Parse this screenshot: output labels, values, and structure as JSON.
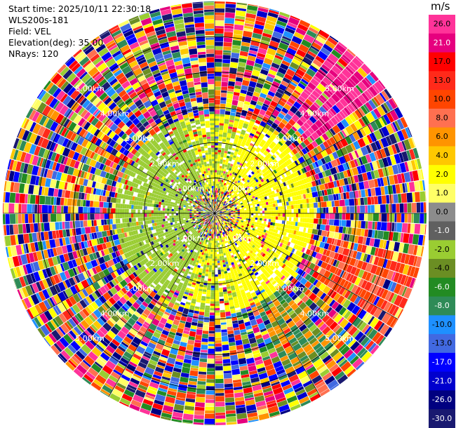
{
  "header": {
    "start_time": "Start time: 2025/10/11 22:30:18",
    "instrument": "WLS200s-181",
    "field": "Field: VEL",
    "elevation": "Elevation(deg): 35.00",
    "nrays": "NRays: 120"
  },
  "chart_data": {
    "type": "heatmap",
    "projection": "polar-ppi",
    "field": "VEL",
    "units": "m/s",
    "nrays": 120,
    "elevation_deg": 35.0,
    "range_rings_km": [
      1.0,
      2.0,
      3.0,
      4.0,
      5.0
    ],
    "range_ring_labels": [
      "1.00km",
      "2.00km",
      "3.00km",
      "4.00km",
      "5.00km"
    ],
    "max_range_km": 6.0,
    "colorbar": {
      "label": "m/s",
      "ticks": [
        "26.0",
        "21.0",
        "17.0",
        "13.0",
        "10.0",
        "8.0",
        "6.0",
        "4.0",
        "2.0",
        "1.0",
        "0.0",
        "-1.0",
        "-2.0",
        "-4.0",
        "-6.0",
        "-8.0",
        "-10.0",
        "-13.0",
        "-17.0",
        "-21.0",
        "-26.0",
        "-30.0"
      ],
      "colors": [
        "#ff3399",
        "#e6007e",
        "#ff0000",
        "#ff2a1a",
        "#ff4500",
        "#ff7050",
        "#ff9400",
        "#ffc800",
        "#ffff00",
        "#ffff66",
        "#8c8c8c",
        "#606060",
        "#9acd32",
        "#6b8e23",
        "#228b22",
        "#2e8b57",
        "#1e90ff",
        "#4169e1",
        "#0000ff",
        "#0000cd",
        "#000080",
        "#191970"
      ]
    },
    "near_field": {
      "extent_km": 2.8,
      "west_color": "#9acd32",
      "east_color": "#ffff00",
      "southeast_wedge_colors": [
        "#6b8e23",
        "#2e8b57",
        "#ff9400"
      ],
      "northeast_wedge_colors": [
        "#ff3399",
        "#e6007e"
      ],
      "east_band_colors": [
        "#ff4500",
        "#ff7050",
        "#ff2a1a"
      ]
    }
  }
}
